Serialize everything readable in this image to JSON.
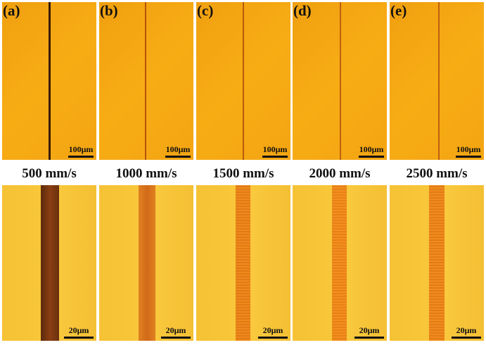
{
  "panels": [
    {
      "label": "(a)",
      "speed": "500 mm/s",
      "top_scale": "100μm",
      "bottom_scale": "20μm"
    },
    {
      "label": "(b)",
      "speed": "1000 mm/s",
      "top_scale": "100μm",
      "bottom_scale": "20μm"
    },
    {
      "label": "(c)",
      "speed": "1500 mm/s",
      "top_scale": "100μm",
      "bottom_scale": "20μm"
    },
    {
      "label": "(d)",
      "speed": "2000 mm/s",
      "top_scale": "100μm",
      "bottom_scale": "20μm"
    },
    {
      "label": "(e)",
      "speed": "2500 mm/s",
      "top_scale": "100μm",
      "bottom_scale": "20μm"
    }
  ]
}
